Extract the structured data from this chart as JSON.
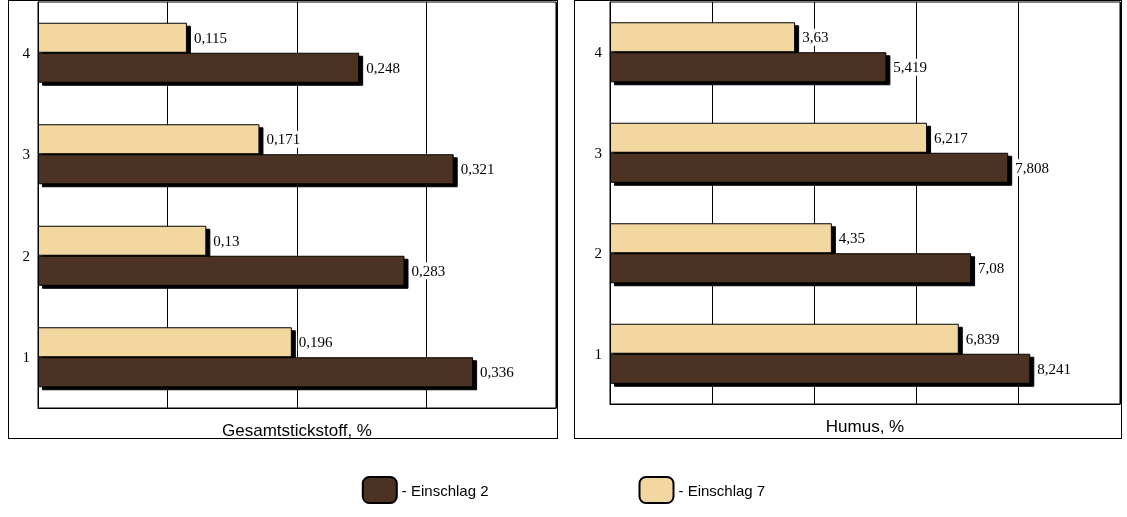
{
  "chart_data": [
    {
      "type": "bar",
      "orientation": "horizontal",
      "xlabel": "Gesamtstickstoff, %",
      "categories": [
        "4",
        "3",
        "2",
        "1"
      ],
      "tick_labels": "y",
      "grid": "x",
      "legend": "bottom",
      "series": [
        {
          "name": "- Einschlag 7",
          "color": "#f2d7a0",
          "values": [
            0.115,
            0.171,
            0.13,
            0.196
          ],
          "value_labels": [
            "0,115",
            "0,171",
            "0,13",
            "0,196"
          ]
        },
        {
          "name": "- Einschlag 2",
          "color": "#4b3222",
          "values": [
            0.248,
            0.321,
            0.283,
            0.336
          ],
          "value_labels": [
            "0,248",
            "0,321",
            "0,283",
            "0,336"
          ]
        }
      ]
    },
    {
      "type": "bar",
      "orientation": "horizontal",
      "xlabel": "Humus, %",
      "categories": [
        "4",
        "3",
        "2",
        "1"
      ],
      "tick_labels": "y",
      "grid": "x",
      "series": [
        {
          "color": "#f2d7a0",
          "values": [
            3.63,
            6.217,
            4.35,
            6.839
          ],
          "value_labels": [
            "3,63",
            "6,217",
            "4,35",
            "6,839"
          ]
        },
        {
          "color": "#4b3222",
          "values": [
            5.419,
            7.808,
            7.08,
            8.241
          ],
          "value_labels": [
            "5,419",
            "7,808",
            "7,08",
            "8,241"
          ]
        }
      ]
    }
  ]
}
